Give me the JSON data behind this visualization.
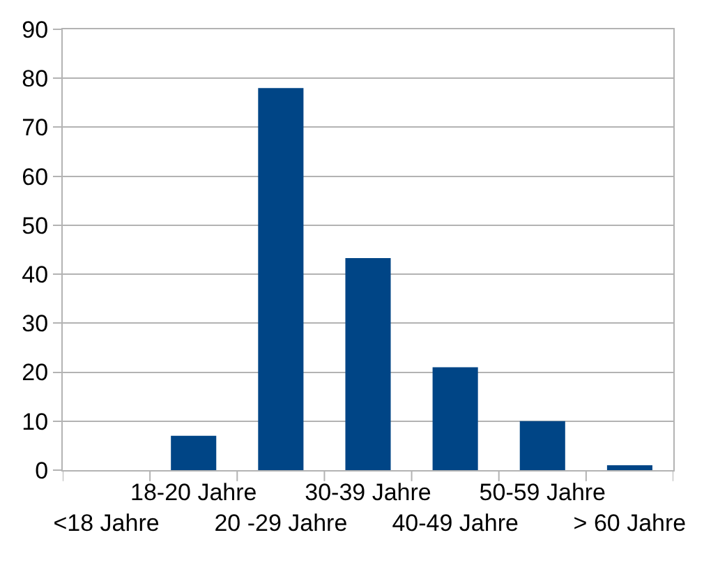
{
  "chart_data": {
    "type": "bar",
    "categories": [
      "<18 Jahre",
      "18-20 Jahre",
      "20 -29 Jahre",
      "30-39 Jahre",
      "40-49 Jahre",
      "50-59 Jahre",
      "> 60 Jahre"
    ],
    "values": [
      0,
      7,
      78,
      43.3,
      21,
      10,
      1
    ],
    "color": "#004586",
    "ylim": [
      0,
      90
    ],
    "yticks": [
      0,
      10,
      20,
      30,
      40,
      50,
      60,
      70,
      80,
      90
    ],
    "grid": "y"
  }
}
